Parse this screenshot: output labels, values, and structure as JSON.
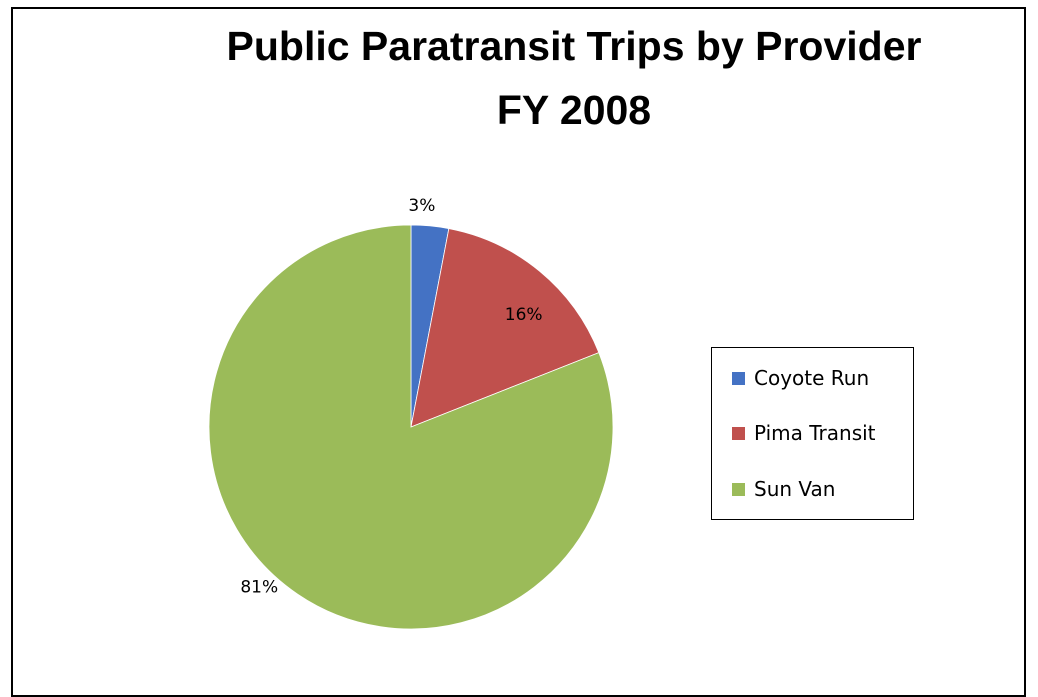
{
  "chart_data": {
    "type": "pie",
    "title_lines": [
      "Public Paratransit Trips by Provider",
      "FY 2008"
    ],
    "categories": [
      "Coyote Run",
      "Pima Transit",
      "Sun Van"
    ],
    "values": [
      3,
      16,
      81
    ],
    "data_labels": [
      "3%",
      "16%",
      "81%"
    ],
    "colors": [
      "#4472C4",
      "#C0504D",
      "#9BBB59"
    ],
    "legend_position": "right",
    "start_angle_deg": 0,
    "direction": "clockwise"
  }
}
